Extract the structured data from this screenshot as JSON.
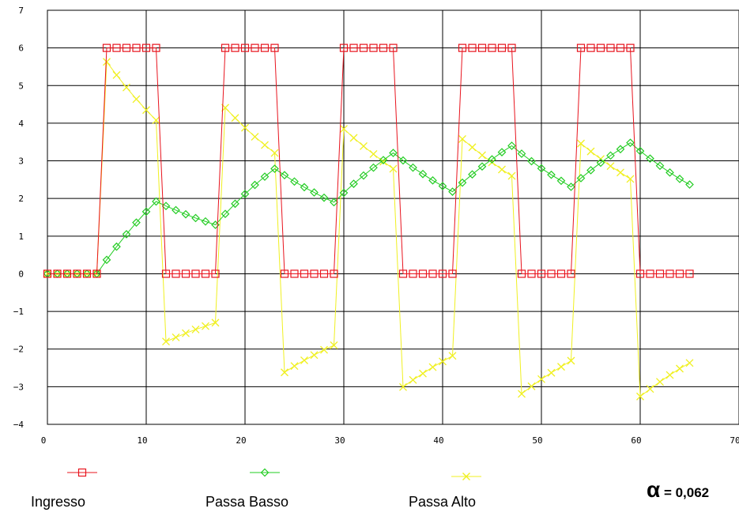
{
  "chart_data": {
    "type": "line",
    "xlim": [
      0,
      70
    ],
    "ylim": [
      -4,
      7
    ],
    "x_ticks": [
      0,
      10,
      20,
      30,
      40,
      50,
      60,
      70
    ],
    "y_ticks": [
      -4,
      -3,
      -2,
      -1,
      0,
      1,
      2,
      3,
      4,
      5,
      6,
      7
    ],
    "y_tick_labels": [
      "−4",
      "−3",
      "−2",
      "−1",
      "0",
      "1",
      "2",
      "3",
      "4",
      "5",
      "6",
      "7"
    ],
    "grid": true,
    "legend_position": "bottom",
    "annotation": {
      "symbol": "α",
      "text": " = 0,062"
    },
    "series": [
      {
        "name": "Ingresso",
        "color": "#e8141e",
        "marker": "square",
        "x": [
          0,
          1,
          2,
          3,
          4,
          5,
          6,
          7,
          8,
          9,
          10,
          11,
          12,
          13,
          14,
          15,
          16,
          17,
          18,
          19,
          20,
          21,
          22,
          23,
          24,
          25,
          26,
          27,
          28,
          29,
          30,
          31,
          32,
          33,
          34,
          35,
          36,
          37,
          38,
          39,
          40,
          41,
          42,
          43,
          44,
          45,
          46,
          47,
          48,
          49,
          50,
          51,
          52,
          53,
          54,
          55,
          56,
          57,
          58,
          59,
          60,
          61,
          62,
          63,
          64,
          65
        ],
        "values": [
          0,
          0,
          0,
          0,
          0,
          0,
          6,
          6,
          6,
          6,
          6,
          6,
          0,
          0,
          0,
          0,
          0,
          0,
          6,
          6,
          6,
          6,
          6,
          6,
          0,
          0,
          0,
          0,
          0,
          0,
          6,
          6,
          6,
          6,
          6,
          6,
          0,
          0,
          0,
          0,
          0,
          0,
          6,
          6,
          6,
          6,
          6,
          6,
          0,
          0,
          0,
          0,
          0,
          0,
          6,
          6,
          6,
          6,
          6,
          6,
          0,
          0,
          0,
          0,
          0,
          0
        ]
      },
      {
        "name": "Passa Basso",
        "color": "#22cc22",
        "marker": "diamond",
        "x": [
          0,
          1,
          2,
          3,
          4,
          5,
          6,
          7,
          8,
          9,
          10,
          11,
          12,
          13,
          14,
          15,
          16,
          17,
          18,
          19,
          20,
          21,
          22,
          23,
          24,
          25,
          26,
          27,
          28,
          29,
          30,
          31,
          32,
          33,
          34,
          35,
          36,
          37,
          38,
          39,
          40,
          41,
          42,
          43,
          44,
          45,
          46,
          47,
          48,
          49,
          50,
          51,
          52,
          53,
          54,
          55,
          56,
          57,
          58,
          59,
          60,
          61,
          62,
          63,
          64,
          65
        ],
        "values": [
          0,
          0,
          0,
          0,
          0,
          0,
          0.37,
          0.72,
          1.05,
          1.36,
          1.65,
          1.92,
          1.8,
          1.69,
          1.58,
          1.48,
          1.39,
          1.3,
          1.59,
          1.86,
          2.12,
          2.36,
          2.58,
          2.79,
          2.62,
          2.45,
          2.3,
          2.16,
          2.02,
          1.9,
          2.15,
          2.39,
          2.61,
          2.82,
          3.02,
          3.21,
          3.01,
          2.82,
          2.65,
          2.48,
          2.33,
          2.18,
          2.42,
          2.64,
          2.85,
          3.04,
          3.23,
          3.4,
          3.19,
          2.99,
          2.8,
          2.63,
          2.47,
          2.31,
          2.54,
          2.75,
          2.95,
          3.14,
          3.31,
          3.48,
          3.26,
          3.06,
          2.87,
          2.69,
          2.52,
          2.37
        ]
      },
      {
        "name": "Passa Alto",
        "color": "#f0f020",
        "marker": "x",
        "x": [
          0,
          1,
          2,
          3,
          4,
          5,
          6,
          7,
          8,
          9,
          10,
          11,
          12,
          13,
          14,
          15,
          16,
          17,
          18,
          19,
          20,
          21,
          22,
          23,
          24,
          25,
          26,
          27,
          28,
          29,
          30,
          31,
          32,
          33,
          34,
          35,
          36,
          37,
          38,
          39,
          40,
          41,
          42,
          43,
          44,
          45,
          46,
          47,
          48,
          49,
          50,
          51,
          52,
          53,
          54,
          55,
          56,
          57,
          58,
          59,
          60,
          61,
          62,
          63,
          64,
          65
        ],
        "values": [
          0,
          0,
          0,
          0,
          0,
          0,
          5.63,
          5.28,
          4.95,
          4.64,
          4.35,
          4.08,
          -1.8,
          -1.69,
          -1.58,
          -1.48,
          -1.39,
          -1.3,
          4.41,
          4.14,
          3.88,
          3.64,
          3.42,
          3.21,
          -2.62,
          -2.45,
          -2.3,
          -2.16,
          -2.02,
          -1.9,
          3.85,
          3.61,
          3.39,
          3.18,
          2.98,
          2.79,
          -3.01,
          -2.82,
          -2.65,
          -2.48,
          -2.33,
          -2.18,
          3.58,
          3.36,
          3.15,
          2.96,
          2.77,
          2.6,
          -3.19,
          -2.99,
          -2.8,
          -2.63,
          -2.47,
          -2.31,
          3.46,
          3.25,
          3.05,
          2.86,
          2.69,
          2.52,
          -3.26,
          -3.06,
          -2.87,
          -2.69,
          -2.52,
          -2.37
        ]
      }
    ]
  }
}
